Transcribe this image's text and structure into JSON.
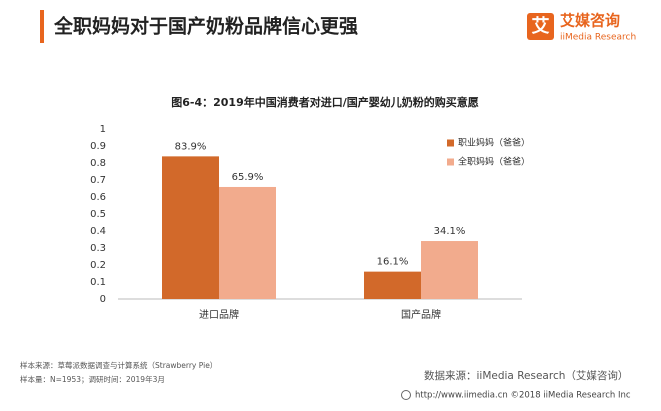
{
  "header": {
    "title": "全职妈妈对于国产奶粉品牌信心更强",
    "logo_icon": "艾",
    "logo_name": "艾媒咨询",
    "logo_sub": "iiMedia Research"
  },
  "chart_data": {
    "type": "bar",
    "title": "图6-4：2019年中国消费者对进口/国产婴幼儿奶粉的购买意愿",
    "categories": [
      "进口品牌",
      "国产品牌"
    ],
    "series": [
      {
        "name": "职业妈妈（爸爸）",
        "color": "#d2692a",
        "values": [
          0.839,
          0.161
        ],
        "value_labels": [
          "83.9%",
          "16.1%"
        ]
      },
      {
        "name": "全职妈妈（爸爸）",
        "color": "#f2ab8d",
        "values": [
          0.659,
          0.341
        ],
        "value_labels": [
          "65.9%",
          "34.1%"
        ]
      }
    ],
    "ylim": [
      0,
      1
    ],
    "yticks": [
      0,
      0.1,
      0.2,
      0.3,
      0.4,
      0.5,
      0.6,
      0.7,
      0.8,
      0.9,
      1
    ],
    "grid": false,
    "legend": "upper right"
  },
  "notes": [
    "样本来源：草莓派数据调查与计算系统（Strawberry Pie）",
    "样本量：N=1953；调研时间：2019年3月"
  ],
  "source": "数据来源：iiMedia Research（艾媒咨询）",
  "footer": "http://www.iimedia.cn  ©2018  iiMedia Research Inc"
}
